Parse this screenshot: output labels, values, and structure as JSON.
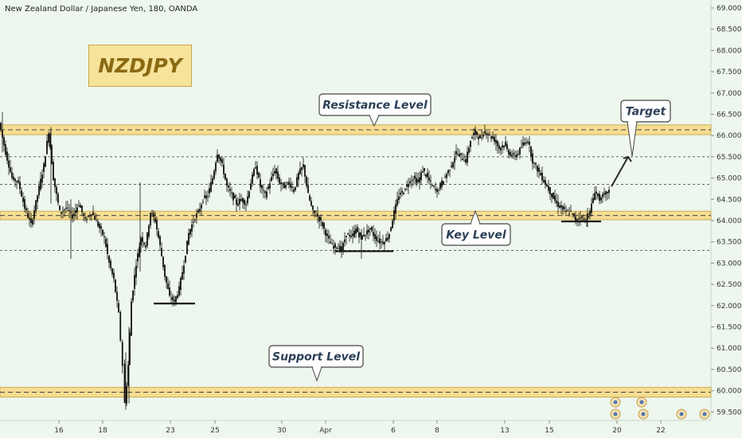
{
  "header": {
    "title": "New Zealand Dollar / Japanese Yen, 180, OANDA"
  },
  "ticker_label": "NZDJPY",
  "chart_data": {
    "type": "candlestick",
    "symbol": "NZDJPY",
    "interval": "180",
    "source": "OANDA",
    "ylim": [
      59.25,
      69.15
    ],
    "y_ticks": [
      "69.000",
      "68.500",
      "68.000",
      "67.500",
      "67.000",
      "66.500",
      "66.000",
      "65.500",
      "65.000",
      "64.500",
      "64.000",
      "63.500",
      "63.000",
      "62.500",
      "62.000",
      "61.500",
      "61.000",
      "60.500",
      "60.000",
      "59.500"
    ],
    "x_ticks": [
      "16",
      "18",
      "23",
      "25",
      "30",
      "Apr",
      "6",
      "8",
      "13",
      "15",
      "20",
      "22"
    ],
    "zones": [
      {
        "name": "Resistance Level",
        "top": 66.25,
        "bottom": 66.02
      },
      {
        "name": "Key Level",
        "top": 64.22,
        "bottom": 64.02
      },
      {
        "name": "Support Level",
        "top": 60.08,
        "bottom": 59.85
      }
    ],
    "dashed_levels": [
      65.5,
      64.85,
      63.3
    ],
    "callouts": [
      {
        "label": "Resistance Level"
      },
      {
        "label": "Key Level"
      },
      {
        "label": "Support Level"
      },
      {
        "label": "Target"
      }
    ],
    "price_path": [
      [
        0,
        66.3
      ],
      [
        8,
        65.6
      ],
      [
        16,
        65.0
      ],
      [
        24,
        64.9
      ],
      [
        32,
        64.3
      ],
      [
        40,
        63.9
      ],
      [
        48,
        64.6
      ],
      [
        56,
        65.3
      ],
      [
        62,
        66.1
      ],
      [
        68,
        65.0
      ],
      [
        76,
        64.2
      ],
      [
        84,
        64.3
      ],
      [
        92,
        64.1
      ],
      [
        100,
        64.4
      ],
      [
        108,
        64.0
      ],
      [
        116,
        64.2
      ],
      [
        124,
        63.9
      ],
      [
        132,
        63.6
      ],
      [
        138,
        63.0
      ],
      [
        144,
        62.6
      ],
      [
        150,
        61.8
      ],
      [
        155,
        60.6
      ],
      [
        158,
        59.7
      ],
      [
        162,
        60.6
      ],
      [
        166,
        62.1
      ],
      [
        172,
        63.0
      ],
      [
        178,
        63.6
      ],
      [
        184,
        63.4
      ],
      [
        190,
        64.2
      ],
      [
        196,
        64.0
      ],
      [
        202,
        63.4
      ],
      [
        208,
        62.7
      ],
      [
        214,
        62.2
      ],
      [
        220,
        62.1
      ],
      [
        226,
        62.4
      ],
      [
        232,
        63.0
      ],
      [
        238,
        63.7
      ],
      [
        244,
        64.0
      ],
      [
        250,
        64.2
      ],
      [
        256,
        64.5
      ],
      [
        262,
        64.6
      ],
      [
        268,
        65.0
      ],
      [
        274,
        65.6
      ],
      [
        280,
        65.3
      ],
      [
        286,
        64.8
      ],
      [
        292,
        64.6
      ],
      [
        298,
        64.4
      ],
      [
        304,
        64.5
      ],
      [
        310,
        64.4
      ],
      [
        316,
        64.9
      ],
      [
        322,
        65.3
      ],
      [
        328,
        64.8
      ],
      [
        334,
        64.6
      ],
      [
        340,
        64.9
      ],
      [
        346,
        65.2
      ],
      [
        352,
        64.9
      ],
      [
        358,
        64.8
      ],
      [
        364,
        64.9
      ],
      [
        370,
        64.7
      ],
      [
        376,
        65.1
      ],
      [
        382,
        65.3
      ],
      [
        388,
        64.6
      ],
      [
        394,
        64.2
      ],
      [
        400,
        64.1
      ],
      [
        406,
        63.9
      ],
      [
        412,
        63.6
      ],
      [
        418,
        63.4
      ],
      [
        424,
        63.4
      ],
      [
        430,
        63.3
      ],
      [
        436,
        63.7
      ],
      [
        442,
        63.6
      ],
      [
        448,
        63.8
      ],
      [
        454,
        63.6
      ],
      [
        460,
        63.7
      ],
      [
        466,
        63.8
      ],
      [
        472,
        63.6
      ],
      [
        478,
        63.5
      ],
      [
        484,
        63.5
      ],
      [
        490,
        63.7
      ],
      [
        496,
        64.2
      ],
      [
        502,
        64.6
      ],
      [
        508,
        64.7
      ],
      [
        514,
        64.9
      ],
      [
        520,
        65.0
      ],
      [
        526,
        64.9
      ],
      [
        532,
        65.2
      ],
      [
        538,
        65.0
      ],
      [
        544,
        64.8
      ],
      [
        550,
        64.7
      ],
      [
        556,
        64.9
      ],
      [
        562,
        65.1
      ],
      [
        568,
        65.3
      ],
      [
        574,
        65.6
      ],
      [
        580,
        65.5
      ],
      [
        586,
        65.4
      ],
      [
        592,
        65.9
      ],
      [
        598,
        66.1
      ],
      [
        604,
        65.9
      ],
      [
        610,
        66.1
      ],
      [
        616,
        66.0
      ],
      [
        622,
        65.9
      ],
      [
        628,
        65.7
      ],
      [
        634,
        65.8
      ],
      [
        640,
        65.6
      ],
      [
        646,
        65.5
      ],
      [
        652,
        65.6
      ],
      [
        658,
        65.8
      ],
      [
        664,
        65.9
      ],
      [
        670,
        65.4
      ],
      [
        676,
        65.2
      ],
      [
        682,
        65.0
      ],
      [
        688,
        64.8
      ],
      [
        694,
        64.6
      ],
      [
        700,
        64.4
      ],
      [
        706,
        64.3
      ],
      [
        712,
        64.2
      ],
      [
        718,
        64.2
      ],
      [
        724,
        64.0
      ],
      [
        730,
        64.1
      ],
      [
        736,
        64.0
      ],
      [
        742,
        64.2
      ],
      [
        748,
        64.7
      ],
      [
        754,
        64.5
      ],
      [
        760,
        64.6
      ],
      [
        766,
        64.7
      ]
    ],
    "annotations": [
      {
        "type": "double_bottom_line",
        "y": 62.05
      },
      {
        "type": "double_bottom_line",
        "y": 63.28
      },
      {
        "type": "double_bottom_line",
        "y": 63.98
      },
      {
        "type": "arrow_to_target",
        "from": 64.8,
        "to": 65.5
      }
    ]
  }
}
